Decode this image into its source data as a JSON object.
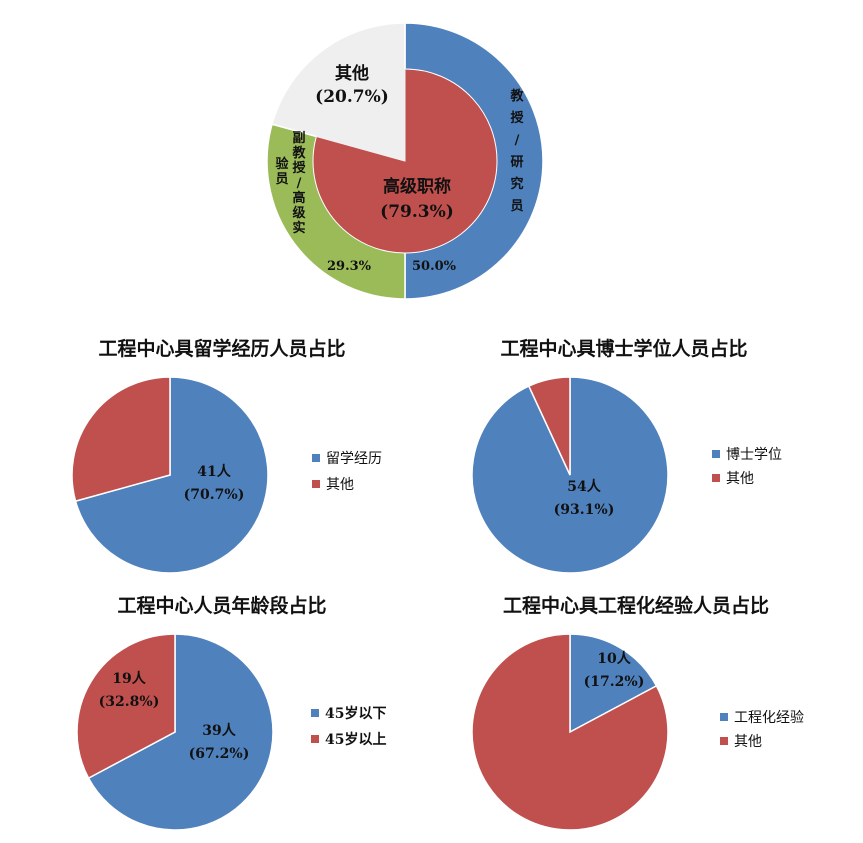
{
  "colors": {
    "blue": "#4f81bd",
    "red": "#c0504d",
    "green": "#9bbb59",
    "grey": "#efefef"
  },
  "chart_data": [
    {
      "type": "pie",
      "variant": "nested-donut",
      "title": "",
      "inner": {
        "slices": [
          {
            "label": "高级职称",
            "pct_label": "(79.3%)",
            "value": 79.3,
            "color": "#c0504d"
          },
          {
            "label": "",
            "value": 20.7,
            "color": "#efefef"
          }
        ]
      },
      "outer": {
        "slices": [
          {
            "label": "教授/研究员",
            "pct_label": "50.0%",
            "value": 50.0,
            "color": "#4f81bd"
          },
          {
            "label": "副教授/高级实验员",
            "pct_label": "29.3%",
            "value": 29.3,
            "color": "#9bbb59"
          },
          {
            "label": "其他",
            "pct_label": "(20.7%)",
            "value": 20.7,
            "color": "#efefef"
          }
        ]
      }
    },
    {
      "type": "pie",
      "title": "工程中心具留学经历人员占比",
      "legend_position": "right",
      "slices": [
        {
          "legend": "留学经历",
          "value": 70.7,
          "count_label": "41人",
          "pct_label": "(70.7%)",
          "color": "#4f81bd"
        },
        {
          "legend": "其他",
          "value": 29.3,
          "count_label": "",
          "pct_label": "",
          "color": "#c0504d"
        }
      ]
    },
    {
      "type": "pie",
      "title": "工程中心具博士学位人员占比",
      "legend_position": "right",
      "slices": [
        {
          "legend": "博士学位",
          "value": 93.1,
          "count_label": "54人",
          "pct_label": "(93.1%)",
          "color": "#4f81bd"
        },
        {
          "legend": "其他",
          "value": 6.9,
          "count_label": "",
          "pct_label": "",
          "color": "#c0504d"
        }
      ]
    },
    {
      "type": "pie",
      "title": "工程中心人员年龄段占比",
      "legend_position": "right",
      "slices": [
        {
          "legend": "45岁以下",
          "value": 67.2,
          "count_label": "39人",
          "pct_label": "(67.2%)",
          "color": "#4f81bd"
        },
        {
          "legend": "45岁以上",
          "value": 32.8,
          "count_label": "19人",
          "pct_label": "(32.8%)",
          "color": "#c0504d"
        }
      ]
    },
    {
      "type": "pie",
      "title": "工程中心具工程化经验人员占比",
      "legend_position": "right",
      "slices": [
        {
          "legend": "工程化经验",
          "value": 17.2,
          "count_label": "10人",
          "pct_label": "(17.2%)",
          "color": "#4f81bd"
        },
        {
          "legend": "其他",
          "value": 82.8,
          "count_label": "",
          "pct_label": "",
          "color": "#c0504d"
        }
      ]
    }
  ]
}
